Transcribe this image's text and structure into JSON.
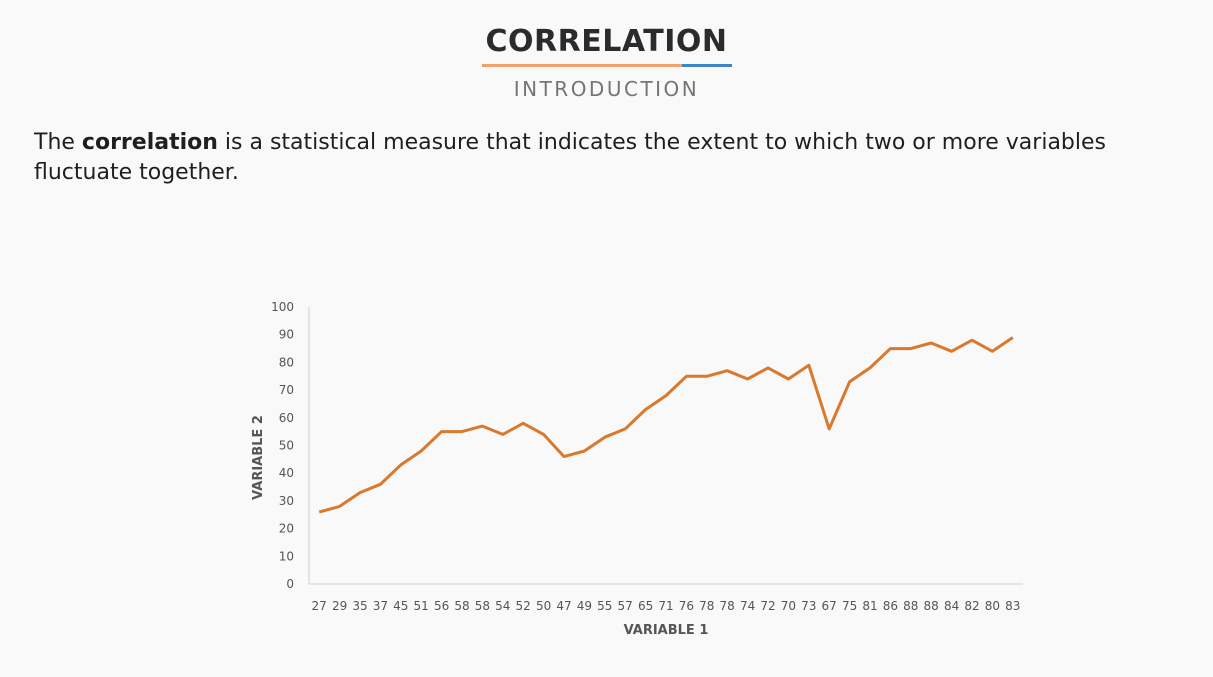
{
  "header": {
    "title": "CORRELATION",
    "subtitle": "INTRODUCTION"
  },
  "intro": {
    "before": "The ",
    "bold": "correlation",
    "after": " is a statistical measure that indicates the extent to which two or more variables fluctuate together."
  },
  "colors": {
    "line": "#d8792f",
    "rule_left": "#f0a06a",
    "rule_right": "#3d86c6"
  },
  "chart_data": {
    "type": "line",
    "xlabel": "VARIABLE 1",
    "ylabel": "VARIABLE 2",
    "ylim": [
      0,
      100
    ],
    "yticks": [
      0,
      10,
      20,
      30,
      40,
      50,
      60,
      70,
      80,
      90,
      100
    ],
    "grid": false,
    "categories": [
      "27",
      "29",
      "35",
      "37",
      "45",
      "51",
      "56",
      "58",
      "58",
      "54",
      "52",
      "50",
      "47",
      "49",
      "55",
      "57",
      "65",
      "71",
      "76",
      "78",
      "78",
      "74",
      "72",
      "70",
      "73",
      "67",
      "75",
      "81",
      "86",
      "88",
      "88",
      "84",
      "82",
      "80",
      "83"
    ],
    "values": [
      26,
      28,
      33,
      36,
      43,
      48,
      55,
      55,
      57,
      54,
      58,
      54,
      46,
      48,
      53,
      56,
      63,
      68,
      75,
      75,
      77,
      74,
      78,
      74,
      79,
      56,
      73,
      78,
      85,
      85,
      87,
      84,
      88,
      84,
      89
    ]
  }
}
